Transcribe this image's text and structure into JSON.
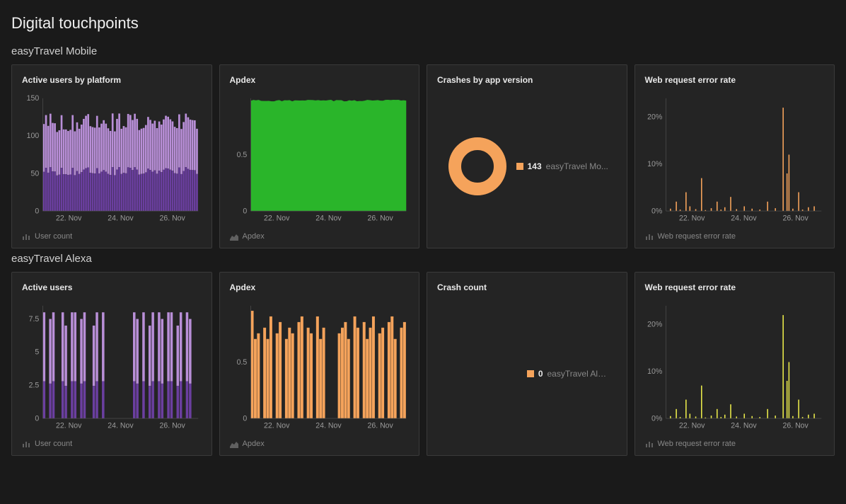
{
  "page_title": "Digital touchpoints",
  "colors": {
    "background": "#1a1a1a",
    "card_bg": "#242424",
    "card_border": "#3a3a3a",
    "text_primary": "#e8e8e8",
    "text_muted": "#888888",
    "axis": "#9a9a9a",
    "axis_line": "#555555",
    "purple_dark": "#6b3fa0",
    "purple_light": "#b98fd8",
    "green": "#2ab52a",
    "orange": "#f5a35b",
    "yellow": "#e8e84a"
  },
  "x_ticks": [
    "22. Nov",
    "24. Nov",
    "26. Nov"
  ],
  "sections": [
    {
      "title": "easyTravel Mobile",
      "cards": [
        {
          "title": "Active users by platform",
          "footer_label": "User count",
          "footer_icon": "bar",
          "chart": {
            "type": "stacked_bars",
            "colors": [
              "#6b3fa0",
              "#b98fd8"
            ],
            "ymax": 150,
            "yticks": [
              0,
              50,
              100,
              150
            ],
            "bars": 70,
            "height_range": [
              105,
              130
            ],
            "split": 0.45
          }
        },
        {
          "title": "Apdex",
          "footer_label": "Apdex",
          "footer_icon": "area",
          "chart": {
            "type": "area_full",
            "color": "#2ab52a",
            "ymax": 1.0,
            "yticks": [
              0,
              0.5
            ],
            "value": 0.98
          }
        },
        {
          "title": "Crashes by app version",
          "footer_label": "",
          "footer_icon": "",
          "chart": {
            "type": "donut",
            "color": "#f5a35b",
            "count": "143",
            "label": "easyTravel Mo..."
          }
        },
        {
          "title": "Web request error rate",
          "footer_label": "Web request error rate",
          "footer_icon": "bar",
          "chart": {
            "type": "sparse_bars",
            "color": "#f5a35b",
            "ymax": 24,
            "yticks": [
              "0%",
              "10%",
              "20%"
            ],
            "ytick_vals": [
              0,
              10,
              20
            ],
            "bars": [
              [
                2,
                0.5
              ],
              [
                5,
                2
              ],
              [
                7,
                0.3
              ],
              [
                10,
                4
              ],
              [
                12,
                1
              ],
              [
                15,
                0.4
              ],
              [
                18,
                7
              ],
              [
                20,
                0.2
              ],
              [
                23,
                0.6
              ],
              [
                26,
                2
              ],
              [
                28,
                0.3
              ],
              [
                30,
                0.8
              ],
              [
                33,
                3
              ],
              [
                36,
                0.4
              ],
              [
                40,
                1
              ],
              [
                44,
                0.5
              ],
              [
                48,
                0.3
              ],
              [
                52,
                2
              ],
              [
                56,
                0.6
              ],
              [
                60,
                22
              ],
              [
                62,
                8
              ],
              [
                63,
                12
              ],
              [
                65,
                0.5
              ],
              [
                68,
                4
              ],
              [
                70,
                0.3
              ],
              [
                73,
                0.8
              ],
              [
                76,
                1
              ]
            ]
          }
        }
      ]
    },
    {
      "title": "easyTravel Alexa",
      "cards": [
        {
          "title": "Active users",
          "footer_label": "User count",
          "footer_icon": "bar",
          "chart": {
            "type": "gapped_bars",
            "colors": [
              "#6b3fa0",
              "#b98fd8"
            ],
            "ymax": 8.5,
            "yticks": [
              0,
              2.5,
              5,
              7.5
            ],
            "pattern": [
              8,
              0,
              7.5,
              8,
              0,
              0,
              8,
              7,
              0,
              8,
              8,
              0,
              7.5,
              8,
              0,
              0,
              7,
              8,
              0,
              8,
              0,
              0,
              0,
              0,
              0,
              0,
              0,
              0,
              0,
              8,
              7.5,
              0,
              8,
              0,
              7,
              8,
              0,
              8,
              7.5,
              0,
              8,
              8,
              0,
              7,
              8,
              0,
              8,
              7.5,
              0,
              0
            ],
            "split": 0.35
          }
        },
        {
          "title": "Apdex",
          "footer_label": "Apdex",
          "footer_icon": "area",
          "chart": {
            "type": "gapped_area",
            "color": "#f5a35b",
            "ymax": 1.0,
            "yticks": [
              0,
              0.5
            ],
            "pattern": [
              0.95,
              0.7,
              0.75,
              0,
              0.8,
              0.7,
              0.9,
              0,
              0.75,
              0.85,
              0,
              0.7,
              0.8,
              0.75,
              0,
              0.85,
              0.9,
              0,
              0.8,
              0.75,
              0,
              0.9,
              0.7,
              0.8,
              0,
              0,
              0,
              0,
              0.75,
              0.8,
              0.85,
              0.7,
              0,
              0.9,
              0.8,
              0,
              0.85,
              0.7,
              0.8,
              0.9,
              0,
              0.75,
              0.8,
              0,
              0.85,
              0.9,
              0.7,
              0,
              0.8,
              0.85
            ]
          }
        },
        {
          "title": "Crash count",
          "footer_label": "",
          "footer_icon": "",
          "chart": {
            "type": "legend_only",
            "color": "#f5a35b",
            "count": "0",
            "label": "easyTravel Alexa |..."
          }
        },
        {
          "title": "Web request error rate",
          "footer_label": "Web request error rate",
          "footer_icon": "bar",
          "chart": {
            "type": "sparse_bars",
            "color": "#e8e84a",
            "ymax": 24,
            "yticks": [
              "0%",
              "10%",
              "20%"
            ],
            "ytick_vals": [
              0,
              10,
              20
            ],
            "bars": [
              [
                2,
                0.5
              ],
              [
                5,
                2
              ],
              [
                7,
                0.3
              ],
              [
                10,
                4
              ],
              [
                12,
                1
              ],
              [
                15,
                0.4
              ],
              [
                18,
                7
              ],
              [
                20,
                0.2
              ],
              [
                23,
                0.6
              ],
              [
                26,
                2
              ],
              [
                28,
                0.3
              ],
              [
                30,
                0.8
              ],
              [
                33,
                3
              ],
              [
                36,
                0.4
              ],
              [
                40,
                1
              ],
              [
                44,
                0.5
              ],
              [
                48,
                0.3
              ],
              [
                52,
                2
              ],
              [
                56,
                0.6
              ],
              [
                60,
                22
              ],
              [
                62,
                8
              ],
              [
                63,
                12
              ],
              [
                65,
                0.5
              ],
              [
                68,
                4
              ],
              [
                70,
                0.3
              ],
              [
                73,
                0.8
              ],
              [
                76,
                1
              ]
            ]
          }
        }
      ]
    }
  ]
}
